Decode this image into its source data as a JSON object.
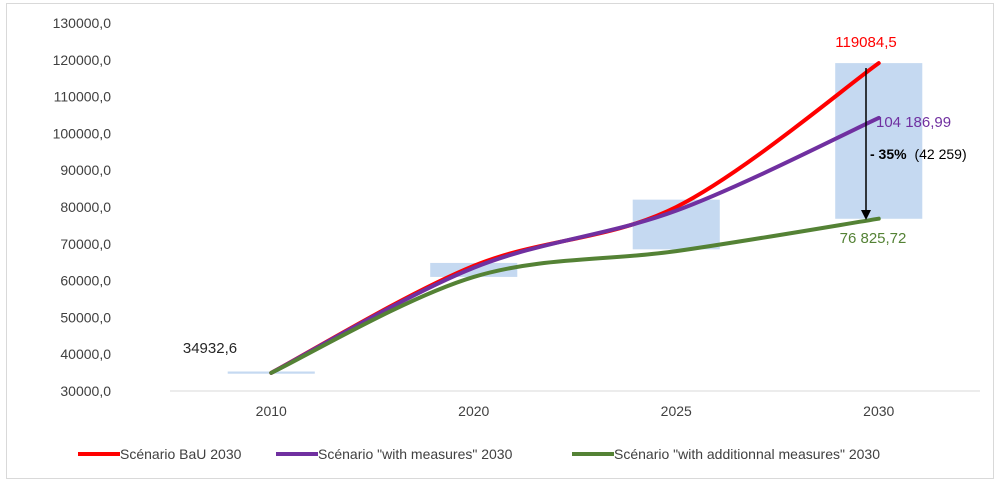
{
  "chart_data": {
    "type": "line",
    "categories": [
      "2010",
      "2020",
      "2025",
      "2030"
    ],
    "ylim": [
      30000,
      130000
    ],
    "ystep": 10000,
    "ytick_labels": [
      "30000,0",
      "40000,0",
      "50000,0",
      "60000,0",
      "70000,0",
      "80000,0",
      "90000,0",
      "100000,0",
      "110000,0",
      "120000,0",
      "130000,0"
    ],
    "grid": false,
    "legend_position": "bottom",
    "series": [
      {
        "name": "Scénario BaU 2030",
        "color": "#ff0000",
        "values": [
          34932.6,
          64000,
          80000,
          119084.5
        ]
      },
      {
        "name": "Scénario \"with measures\" 2030",
        "color": "#7030a0",
        "values": [
          34932.6,
          63500,
          79000,
          104186.99
        ]
      },
      {
        "name": "Scénario \"with additionnal measures\" 2030",
        "color": "#548235",
        "values": [
          34932.6,
          61000,
          68000,
          76825.72
        ]
      }
    ],
    "ranges": [
      {
        "category": "2010",
        "low": 34700,
        "high": 35300
      },
      {
        "category": "2020",
        "low": 61000,
        "high": 64800
      },
      {
        "category": "2025",
        "low": 68500,
        "high": 82000
      },
      {
        "category": "2030",
        "low": 76800,
        "high": 119100
      }
    ],
    "range_color": "#c5d9f1",
    "annotations": {
      "start": "34932,6",
      "bau_end": "119084,5",
      "wm_end": "104 186,99",
      "wam_end": "76 825,72",
      "reduction_pct": "- 35%",
      "reduction_abs": "(42 259)"
    }
  }
}
